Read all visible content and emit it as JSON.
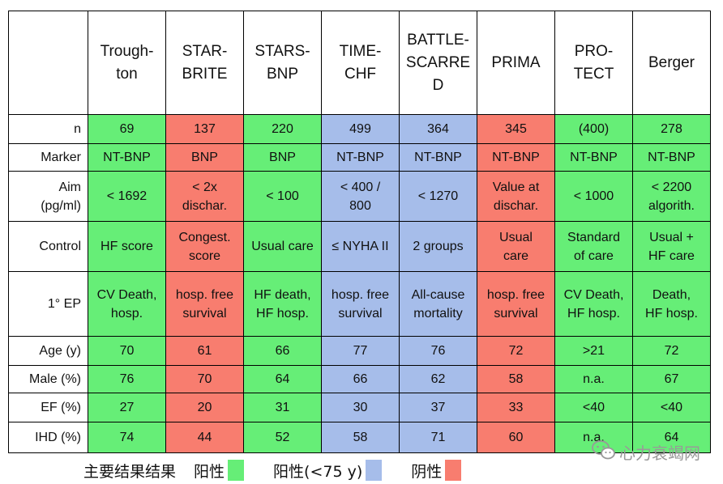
{
  "columns": [
    "",
    "Trough-\nton",
    "STAR-\nBRITE",
    "STARS-\nBNP",
    "TIME-\nCHF",
    "BATTLE-\nSCARRE\nD",
    "PRIMA",
    "PRO-\nTECT",
    "Berger"
  ],
  "column_colors": [
    "g",
    "r",
    "g",
    "b",
    "b",
    "r",
    "g",
    "g"
  ],
  "rows": [
    {
      "label": "n",
      "cells": [
        "69",
        "137",
        "220",
        "499",
        "364",
        "345",
        "(400)",
        "278"
      ]
    },
    {
      "label": "Marker",
      "cells": [
        "NT-BNP",
        "BNP",
        "BNP",
        "NT-BNP",
        "NT-BNP",
        "NT-BNP",
        "NT-BNP",
        "NT-BNP"
      ]
    },
    {
      "label": "Aim\n(pg/ml)",
      "cells": [
        "< 1692",
        "< 2x\ndischar.",
        "< 100",
        "< 400 /\n800",
        "< 1270",
        "Value at\ndischar.",
        "< 1000",
        "< 2200\nalgorith."
      ]
    },
    {
      "label": "Control",
      "cells": [
        "HF score",
        "Congest.\nscore",
        "Usual care",
        "≤ NYHA II",
        "2 groups",
        "Usual\ncare",
        "Standard\nof care",
        "Usual +\nHF care"
      ]
    },
    {
      "label": "1°  EP",
      "cells": [
        "CV Death,\nhosp.",
        "hosp. free\nsurvival",
        "HF death,\nHF hosp.",
        "hosp. free\nsurvival",
        "All-cause\nmortality",
        "hosp. free\nsurvival",
        "CV Death,\nHF hosp.",
        "Death,\nHF hosp."
      ]
    },
    {
      "label": "Age (y)",
      "cells": [
        "70",
        "61",
        "66",
        "77",
        "76",
        "72",
        ">21",
        "72"
      ]
    },
    {
      "label": "Male (%)",
      "cells": [
        "76",
        "70",
        "64",
        "66",
        "62",
        "58",
        "n.a.",
        "67"
      ]
    },
    {
      "label": "EF (%)",
      "cells": [
        "27",
        "20",
        "31",
        "30",
        "37",
        "33",
        "<40",
        "<40"
      ]
    },
    {
      "label": "IHD (%)",
      "cells": [
        "74",
        "44",
        "52",
        "58",
        "71",
        "60",
        "n.a.",
        "64"
      ]
    }
  ],
  "row_heights": [
    128,
    36,
    34,
    62,
    62,
    80,
    36,
    34,
    36,
    38
  ],
  "col_widths": [
    98,
    96,
    96,
    96,
    96,
    96,
    96,
    96,
    96
  ],
  "colors": {
    "g": "#66ee77",
    "r": "#f87d6f",
    "b": "#a6bdea"
  },
  "legend": {
    "title": "主要结果结果",
    "items": [
      {
        "label": "阳性",
        "color": "#66ee77"
      },
      {
        "label": "阳性(<75 y)",
        "color": "#a6bdea"
      },
      {
        "label": "阴性",
        "color": "#f87d6f"
      }
    ]
  },
  "watermark": {
    "icon": "wechat-icon",
    "text": "心力衰竭网"
  }
}
